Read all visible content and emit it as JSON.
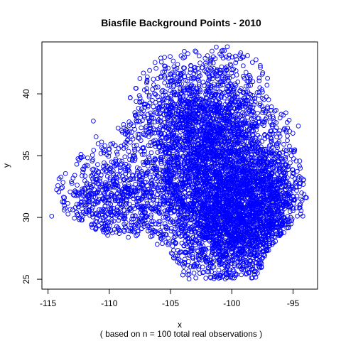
{
  "chart_data": {
    "type": "scatter",
    "title": "Biasfile Background Points - 2010",
    "xlabel": "x",
    "ylabel": "y",
    "subtitle": "( based on n = 100 total real observations )",
    "xlim": [
      -115.5,
      -93
    ],
    "ylim": [
      24.2,
      44.2
    ],
    "x_ticks": [
      -115,
      -110,
      -105,
      -100,
      -95
    ],
    "y_ticks": [
      25,
      30,
      35,
      40
    ],
    "x_tick_labels": [
      "-115",
      "-110",
      "-105",
      "-100",
      "-95"
    ],
    "y_tick_labels": [
      "25",
      "30",
      "35",
      "40"
    ],
    "grid": false,
    "point_color": "#0000ff",
    "marker": "open-circle",
    "approx_point_count": 6000,
    "outliers": [
      {
        "x": -114.7,
        "y": 30.1
      },
      {
        "x": -111.3,
        "y": 37.8
      },
      {
        "x": -94.2,
        "y": 30.1
      }
    ],
    "density_regions": [
      {
        "x": -101.5,
        "y": 33.5,
        "sx": 2.8,
        "sy": 4.0,
        "weight": 0.38
      },
      {
        "x": -100.0,
        "y": 29.5,
        "sx": 2.2,
        "sy": 2.6,
        "weight": 0.2
      },
      {
        "x": -103.0,
        "y": 38.5,
        "sx": 3.0,
        "sy": 2.6,
        "weight": 0.17
      },
      {
        "x": -109.5,
        "y": 31.5,
        "sx": 2.8,
        "sy": 1.8,
        "weight": 0.13
      },
      {
        "x": -97.0,
        "y": 31.5,
        "sx": 1.5,
        "sy": 2.6,
        "weight": 0.12
      }
    ],
    "extent_polygon": [
      [
        -114.5,
        32.8
      ],
      [
        -112.5,
        35.5
      ],
      [
        -110.5,
        37.2
      ],
      [
        -108.5,
        39.2
      ],
      [
        -107.5,
        42.0
      ],
      [
        -104.5,
        43.7
      ],
      [
        -100.0,
        43.9
      ],
      [
        -98.5,
        43.3
      ],
      [
        -96.8,
        41.5
      ],
      [
        -96.2,
        39.0
      ],
      [
        -94.3,
        37.5
      ],
      [
        -94.0,
        33.5
      ],
      [
        -93.7,
        31.0
      ],
      [
        -95.0,
        29.5
      ],
      [
        -96.5,
        28.0
      ],
      [
        -97.5,
        26.5
      ],
      [
        -97.5,
        25.0
      ],
      [
        -104.0,
        25.0
      ],
      [
        -105.5,
        27.5
      ],
      [
        -107.5,
        28.5
      ],
      [
        -109.5,
        28.0
      ],
      [
        -112.5,
        29.5
      ],
      [
        -114.0,
        30.6
      ]
    ]
  }
}
